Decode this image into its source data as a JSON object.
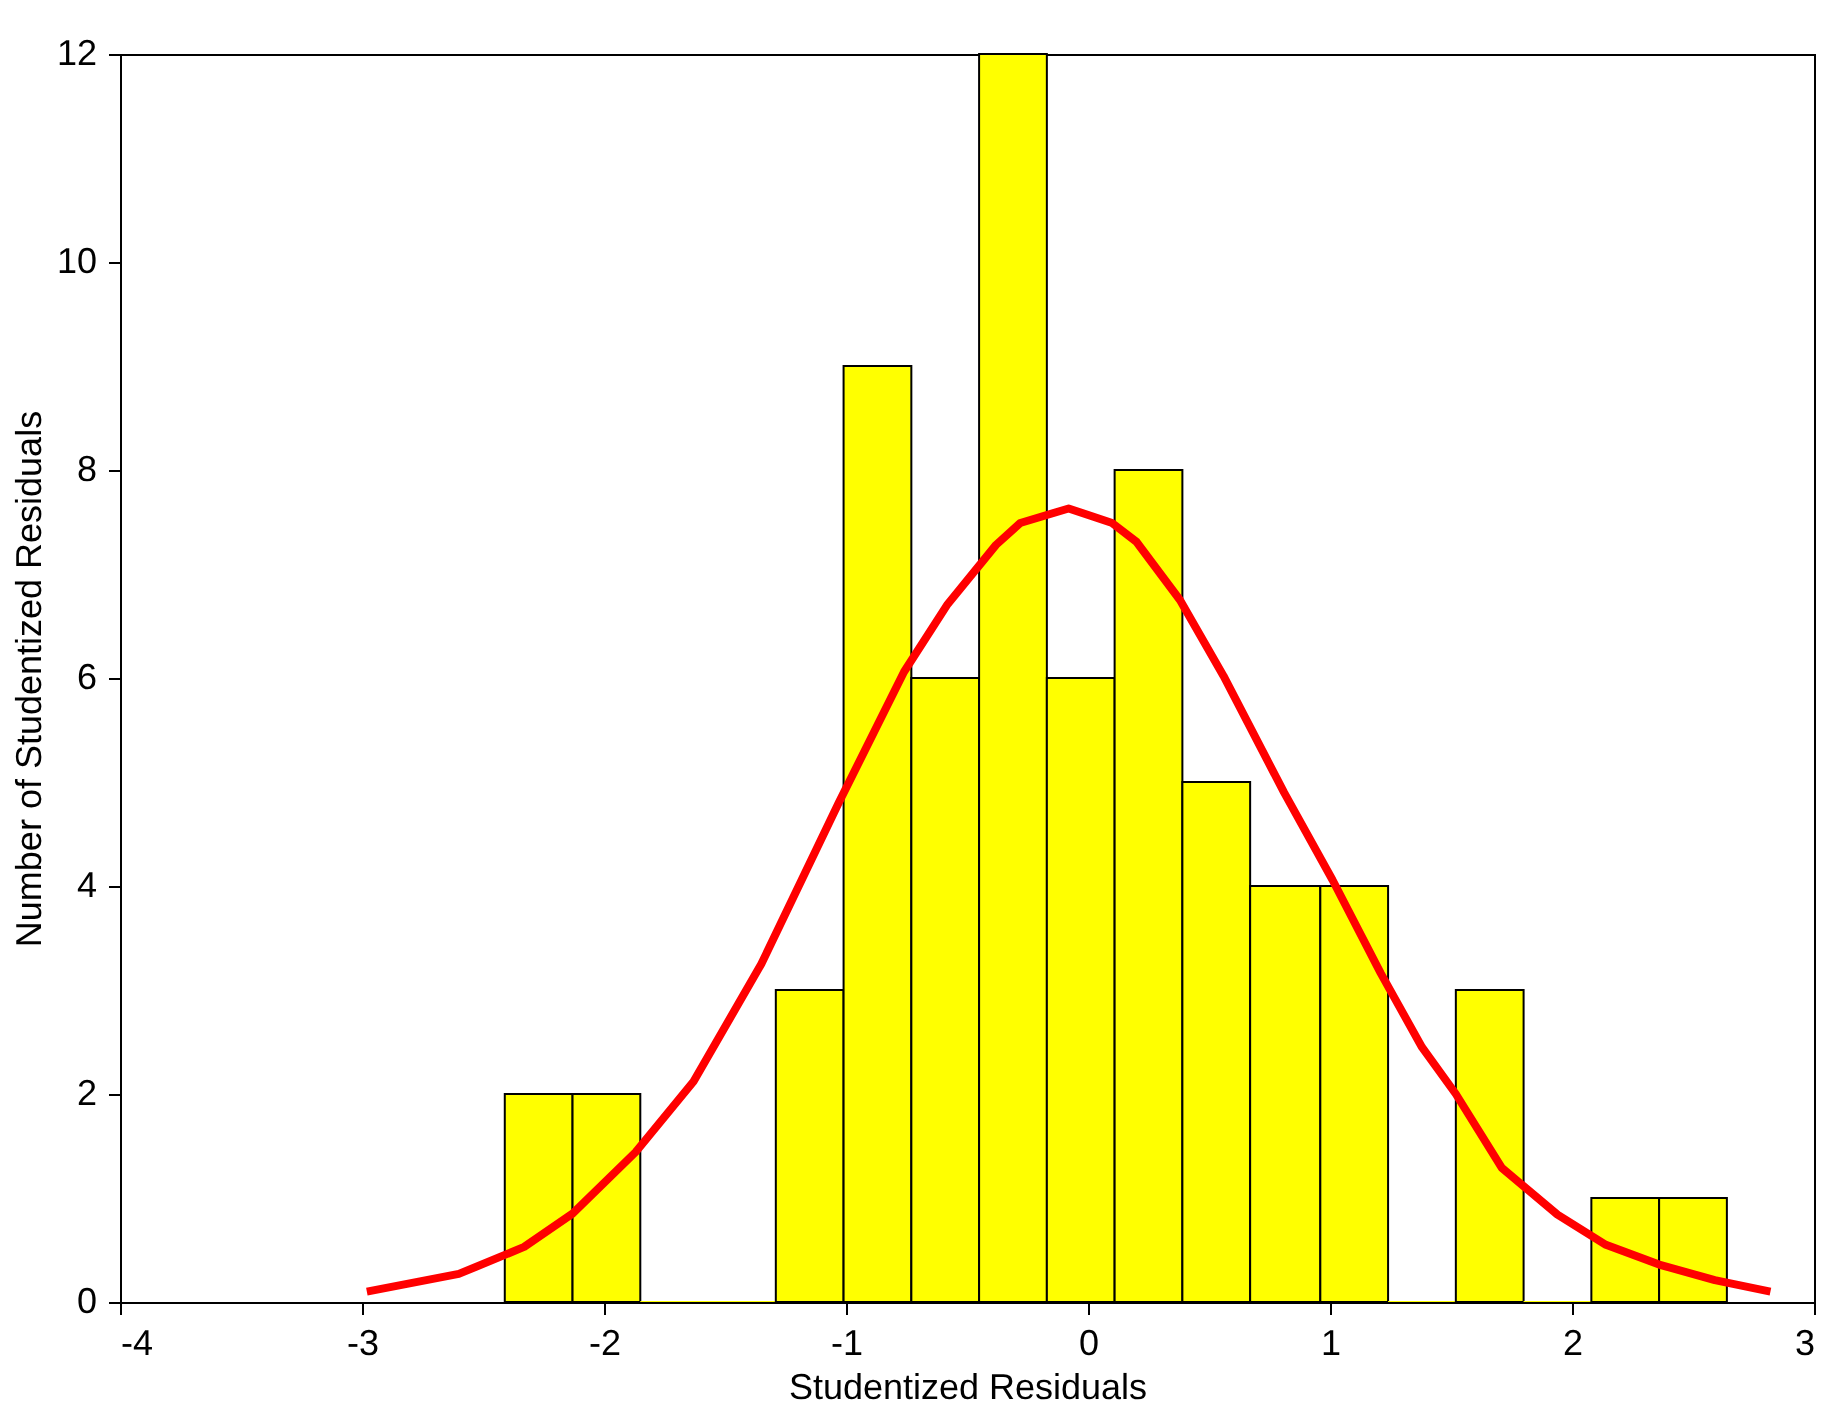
{
  "chart_data": {
    "type": "histogram",
    "xlabel": "Studentized Residuals",
    "ylabel": "Number of Studentized Residuals",
    "xlim": [
      -4,
      3
    ],
    "xticks": [
      -4,
      -3,
      -2,
      -1,
      0,
      1,
      2,
      3
    ],
    "ylim": [
      0,
      12
    ],
    "yticks": [
      0,
      2,
      4,
      6,
      8,
      10,
      12
    ],
    "grid": false,
    "series": [
      {
        "color": "#ffff00",
        "bins": [
          -2.41,
          -2.13,
          -1.85,
          -1.29,
          -1.01,
          -0.73,
          -0.45,
          -0.17,
          0.11,
          0.39,
          0.67,
          0.96,
          1.24,
          1.52,
          1.8,
          2.08,
          2.36,
          2.64
        ],
        "values": [
          2,
          2,
          0,
          3,
          9,
          6,
          12,
          6,
          8,
          5,
          4,
          4,
          0,
          3,
          0,
          1,
          1
        ]
      },
      {
        "type": "line",
        "color": "#ff0000",
        "x": [
          -2.98,
          -2.6,
          -2.33,
          -2.13,
          -1.87,
          -1.63,
          -1.35,
          -1.03,
          -0.76,
          -0.58,
          -0.38,
          -0.28,
          -0.08,
          0.1,
          0.2,
          0.38,
          0.56,
          0.81,
          1.01,
          1.21,
          1.38,
          1.52,
          1.71,
          1.94,
          2.14,
          2.36,
          2.59,
          2.82
        ],
        "values": [
          0.1,
          0.27,
          0.53,
          0.85,
          1.44,
          2.12,
          3.25,
          4.8,
          6.06,
          6.71,
          7.28,
          7.49,
          7.63,
          7.49,
          7.31,
          6.75,
          6.02,
          4.9,
          4.06,
          3.16,
          2.45,
          2.0,
          1.29,
          0.84,
          0.55,
          0.36,
          0.21,
          0.1
        ]
      }
    ]
  }
}
